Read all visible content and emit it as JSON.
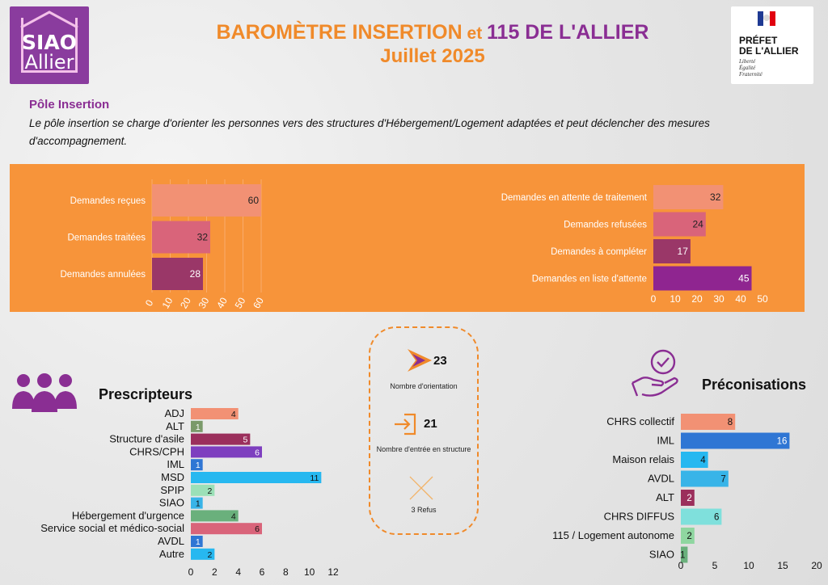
{
  "header": {
    "logo": {
      "line1": "SIAO",
      "line2": "Allier"
    },
    "title_part1": "BAROMÈTRE INSERTION",
    "title_part2": " et ",
    "title_part3": "115 DE L'ALLIER",
    "subtitle": "Juillet 2025",
    "prefet": {
      "line1": "PRÉFET",
      "line2": "DE L'ALLIER",
      "motto1": "Liberté",
      "motto2": "Égalité",
      "motto3": "Fraternité"
    }
  },
  "intro": {
    "heading": "Pôle Insertion",
    "text": "Le pôle insertion se charge d'orienter les personnes vers des structures d'Hébergement/Logement adaptées et peut déclencher des mesures d'accompagnement."
  },
  "center": {
    "orientation_value": "23",
    "orientation_label": "Nombre d'orientation",
    "entree_value": "21",
    "entree_label": "Nombre d'entrée en structure",
    "refus_label": "3 Refus"
  },
  "sections": {
    "prescripteurs": "Prescripteurs",
    "preconisations": "Préconisations"
  },
  "colors": {
    "orange": "#f7943a",
    "purple": "#8a2e93",
    "salmon": "#f29174",
    "rose": "#d9647a",
    "plum": "#9a3768",
    "violet": "#8f2590",
    "green": "#7a9a6a",
    "crimson": "#9b2f5c",
    "indigo": "#7e3fbf",
    "blue": "#2f76d4",
    "sky": "#27b8f0",
    "mint": "#9be0b7",
    "lightblue": "#38b4e8",
    "teal": "#7fe0dc",
    "palegreen": "#8fd6a0",
    "moss": "#6ab07c"
  },
  "chart_data": [
    {
      "type": "bar",
      "orientation": "horizontal",
      "categories": [
        "Demandes reçues",
        "Demandes traitées",
        "Demandes annulées"
      ],
      "values": [
        60,
        32,
        28
      ],
      "bar_colors": [
        "#f29174",
        "#d9647a",
        "#9a3768"
      ],
      "xlim": [
        0,
        60
      ],
      "ticks": [
        0,
        10,
        20,
        30,
        40,
        50,
        60
      ]
    },
    {
      "type": "bar",
      "orientation": "horizontal",
      "categories": [
        "Demandes en attente de traitement",
        "Demandes refusées",
        "Demandes à compléter",
        "Demandes en liste d'attente"
      ],
      "values": [
        32,
        24,
        17,
        45
      ],
      "bar_colors": [
        "#f29174",
        "#d9647a",
        "#9a3768",
        "#8f2590"
      ],
      "xlim": [
        0,
        50
      ],
      "ticks": [
        0,
        10,
        20,
        30,
        40,
        50
      ]
    },
    {
      "type": "bar",
      "orientation": "horizontal",
      "title": "Prescripteurs",
      "categories": [
        "ADJ",
        "ALT",
        "Structure d'asile",
        "CHRS/CPH",
        "IML",
        "MSD",
        "SPIP",
        "SIAO",
        "Hébergement d'urgence",
        "Service social et médico-social",
        "AVDL",
        "Autre"
      ],
      "values": [
        4,
        1,
        5,
        6,
        1,
        11,
        2,
        1,
        4,
        6,
        1,
        2
      ],
      "bar_colors": [
        "#f29174",
        "#7a9a6a",
        "#9b2f5c",
        "#7e3fbf",
        "#2f76d4",
        "#27b8f0",
        "#9be0b7",
        "#38b4e8",
        "#6ab07c",
        "#d9647a",
        "#2f76d4",
        "#27b8f0"
      ],
      "xlim": [
        0,
        12
      ],
      "ticks": [
        0,
        2,
        4,
        6,
        8,
        10,
        12
      ]
    },
    {
      "type": "bar",
      "orientation": "horizontal",
      "title": "Préconisations",
      "categories": [
        "CHRS collectif",
        "IML",
        "Maison relais",
        "AVDL",
        "ALT",
        "CHRS DIFFUS",
        "115 / Logement autonome",
        "SIAO"
      ],
      "values": [
        8,
        16,
        4,
        7,
        2,
        6,
        2,
        1
      ],
      "bar_colors": [
        "#f29174",
        "#2f76d4",
        "#27b8f0",
        "#38b4e8",
        "#9b2f5c",
        "#7fe0dc",
        "#8fd6a0",
        "#6ab07c"
      ],
      "xlim": [
        0,
        20
      ],
      "ticks": [
        0,
        5,
        10,
        15,
        20
      ]
    }
  ]
}
